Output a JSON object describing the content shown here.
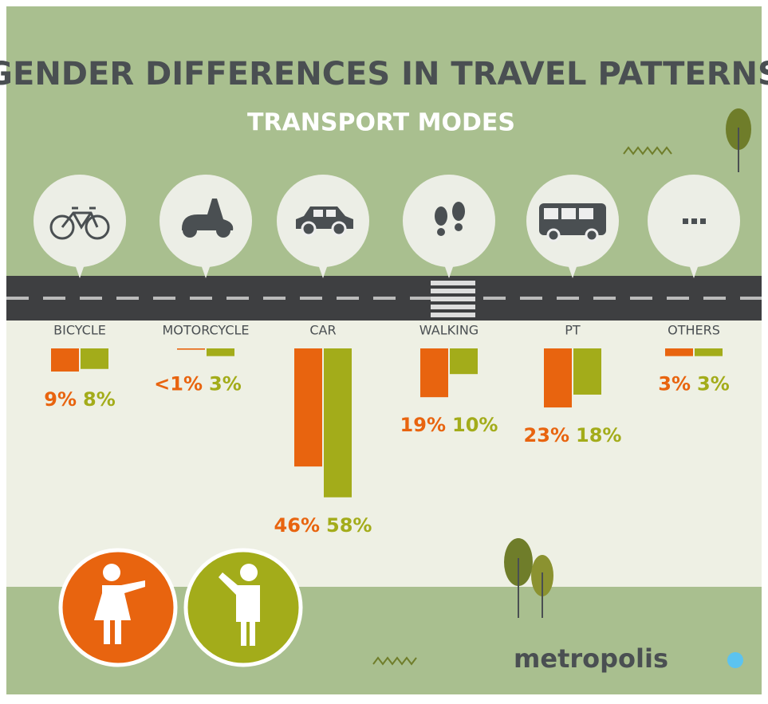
{
  "chart_data": {
    "type": "bar",
    "title": "GENDER DIFFERENCES IN TRAVEL PATTERNS",
    "subtitle": "TRANSPORT MODES",
    "categories": [
      "BICYCLE",
      "MOTORCYCLE",
      "CAR",
      "WALKING",
      "PT",
      "OTHERS"
    ],
    "series": [
      {
        "color": "#e8640f",
        "values": [
          9,
          0.5,
          46,
          19,
          23,
          3
        ],
        "value_labels": [
          "9%",
          "<1%",
          "46%",
          "19%",
          "23%",
          "3%"
        ]
      },
      {
        "color": "#a3ac1a",
        "values": [
          8,
          3,
          58,
          10,
          18,
          3
        ],
        "value_labels": [
          "8%",
          "3%",
          "58%",
          "10%",
          "18%",
          "3%"
        ]
      }
    ]
  },
  "logo": "metropolis"
}
